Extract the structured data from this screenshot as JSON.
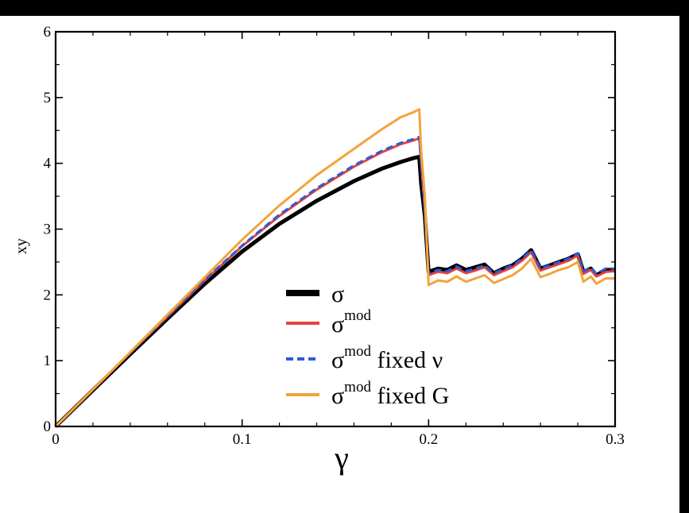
{
  "chart_data": {
    "type": "line",
    "title": "",
    "xlabel": "γ",
    "ylabel": "xy",
    "xlim": [
      0,
      0.3
    ],
    "ylim": [
      0,
      6
    ],
    "xticks": [
      {
        "value": 0,
        "label": "0"
      },
      {
        "value": 0.1,
        "label": "0.1"
      },
      {
        "value": 0.2,
        "label": "0.2"
      },
      {
        "value": 0.3,
        "label": "0.3"
      }
    ],
    "yticks": [
      {
        "value": 0,
        "label": "0"
      },
      {
        "value": 1,
        "label": "1"
      },
      {
        "value": 2,
        "label": "2"
      },
      {
        "value": 3,
        "label": "3"
      },
      {
        "value": 4,
        "label": "4"
      },
      {
        "value": 5,
        "label": "5"
      },
      {
        "value": 6,
        "label": "6"
      }
    ],
    "grid": false,
    "legend_position": "center",
    "series": [
      {
        "name": "σ",
        "legend_sup": "",
        "legend_suffix": "",
        "color": "#000000",
        "style": "solid-thick",
        "points": [
          [
            0,
            0
          ],
          [
            0.02,
            0.55
          ],
          [
            0.04,
            1.1
          ],
          [
            0.06,
            1.64
          ],
          [
            0.08,
            2.17
          ],
          [
            0.1,
            2.66
          ],
          [
            0.12,
            3.08
          ],
          [
            0.14,
            3.43
          ],
          [
            0.16,
            3.73
          ],
          [
            0.175,
            3.92
          ],
          [
            0.185,
            4.02
          ],
          [
            0.192,
            4.08
          ],
          [
            0.195,
            4.1
          ],
          [
            0.196,
            3.7
          ],
          [
            0.198,
            3.2
          ],
          [
            0.2,
            2.35
          ],
          [
            0.205,
            2.4
          ],
          [
            0.21,
            2.38
          ],
          [
            0.215,
            2.45
          ],
          [
            0.22,
            2.38
          ],
          [
            0.225,
            2.42
          ],
          [
            0.23,
            2.46
          ],
          [
            0.235,
            2.33
          ],
          [
            0.24,
            2.4
          ],
          [
            0.245,
            2.45
          ],
          [
            0.25,
            2.55
          ],
          [
            0.255,
            2.68
          ],
          [
            0.26,
            2.4
          ],
          [
            0.265,
            2.45
          ],
          [
            0.27,
            2.5
          ],
          [
            0.275,
            2.55
          ],
          [
            0.28,
            2.62
          ],
          [
            0.283,
            2.35
          ],
          [
            0.287,
            2.4
          ],
          [
            0.29,
            2.3
          ],
          [
            0.295,
            2.38
          ],
          [
            0.3,
            2.38
          ]
        ]
      },
      {
        "name": "σ",
        "legend_sup": "mod",
        "legend_suffix": "",
        "color": "#e8413a",
        "style": "solid",
        "points": [
          [
            0,
            0
          ],
          [
            0.02,
            0.56
          ],
          [
            0.04,
            1.12
          ],
          [
            0.06,
            1.67
          ],
          [
            0.08,
            2.22
          ],
          [
            0.1,
            2.74
          ],
          [
            0.12,
            3.2
          ],
          [
            0.14,
            3.6
          ],
          [
            0.16,
            3.95
          ],
          [
            0.175,
            4.17
          ],
          [
            0.185,
            4.29
          ],
          [
            0.192,
            4.35
          ],
          [
            0.195,
            4.38
          ],
          [
            0.196,
            4.0
          ],
          [
            0.198,
            3.3
          ],
          [
            0.2,
            2.3
          ],
          [
            0.205,
            2.35
          ],
          [
            0.21,
            2.33
          ],
          [
            0.215,
            2.4
          ],
          [
            0.22,
            2.33
          ],
          [
            0.225,
            2.37
          ],
          [
            0.23,
            2.42
          ],
          [
            0.235,
            2.3
          ],
          [
            0.24,
            2.36
          ],
          [
            0.245,
            2.42
          ],
          [
            0.25,
            2.52
          ],
          [
            0.255,
            2.65
          ],
          [
            0.26,
            2.37
          ],
          [
            0.265,
            2.42
          ],
          [
            0.27,
            2.47
          ],
          [
            0.275,
            2.52
          ],
          [
            0.28,
            2.6
          ],
          [
            0.283,
            2.32
          ],
          [
            0.287,
            2.38
          ],
          [
            0.29,
            2.28
          ],
          [
            0.295,
            2.35
          ],
          [
            0.3,
            2.36
          ]
        ]
      },
      {
        "name": "σ",
        "legend_sup": "mod",
        "legend_suffix": " fixed ν",
        "color": "#2b5bd8",
        "style": "dashed",
        "points": [
          [
            0,
            0
          ],
          [
            0.02,
            0.56
          ],
          [
            0.04,
            1.12
          ],
          [
            0.06,
            1.68
          ],
          [
            0.08,
            2.23
          ],
          [
            0.1,
            2.75
          ],
          [
            0.12,
            3.22
          ],
          [
            0.14,
            3.62
          ],
          [
            0.16,
            3.97
          ],
          [
            0.175,
            4.19
          ],
          [
            0.185,
            4.31
          ],
          [
            0.192,
            4.37
          ],
          [
            0.195,
            4.4
          ],
          [
            0.196,
            4.02
          ],
          [
            0.198,
            3.3
          ],
          [
            0.2,
            2.33
          ],
          [
            0.205,
            2.38
          ],
          [
            0.21,
            2.36
          ],
          [
            0.215,
            2.43
          ],
          [
            0.22,
            2.36
          ],
          [
            0.225,
            2.4
          ],
          [
            0.23,
            2.45
          ],
          [
            0.235,
            2.33
          ],
          [
            0.24,
            2.39
          ],
          [
            0.245,
            2.45
          ],
          [
            0.25,
            2.55
          ],
          [
            0.255,
            2.68
          ],
          [
            0.26,
            2.4
          ],
          [
            0.265,
            2.45
          ],
          [
            0.27,
            2.5
          ],
          [
            0.275,
            2.55
          ],
          [
            0.28,
            2.63
          ],
          [
            0.283,
            2.36
          ],
          [
            0.287,
            2.42
          ],
          [
            0.29,
            2.32
          ],
          [
            0.295,
            2.4
          ],
          [
            0.3,
            2.4
          ]
        ]
      },
      {
        "name": "σ",
        "legend_sup": "mod",
        "legend_suffix": " fixed G",
        "color": "#f2a43a",
        "style": "solid",
        "points": [
          [
            0,
            0
          ],
          [
            0.02,
            0.56
          ],
          [
            0.04,
            1.13
          ],
          [
            0.06,
            1.7
          ],
          [
            0.08,
            2.27
          ],
          [
            0.1,
            2.84
          ],
          [
            0.12,
            3.36
          ],
          [
            0.14,
            3.82
          ],
          [
            0.16,
            4.22
          ],
          [
            0.175,
            4.52
          ],
          [
            0.185,
            4.7
          ],
          [
            0.192,
            4.78
          ],
          [
            0.195,
            4.82
          ],
          [
            0.196,
            4.2
          ],
          [
            0.198,
            3.5
          ],
          [
            0.2,
            2.15
          ],
          [
            0.205,
            2.22
          ],
          [
            0.21,
            2.2
          ],
          [
            0.215,
            2.28
          ],
          [
            0.22,
            2.2
          ],
          [
            0.225,
            2.25
          ],
          [
            0.23,
            2.3
          ],
          [
            0.235,
            2.18
          ],
          [
            0.24,
            2.24
          ],
          [
            0.245,
            2.3
          ],
          [
            0.25,
            2.4
          ],
          [
            0.255,
            2.55
          ],
          [
            0.26,
            2.27
          ],
          [
            0.265,
            2.32
          ],
          [
            0.27,
            2.38
          ],
          [
            0.275,
            2.42
          ],
          [
            0.28,
            2.5
          ],
          [
            0.283,
            2.2
          ],
          [
            0.287,
            2.28
          ],
          [
            0.29,
            2.17
          ],
          [
            0.295,
            2.25
          ],
          [
            0.3,
            2.25
          ]
        ]
      }
    ]
  }
}
